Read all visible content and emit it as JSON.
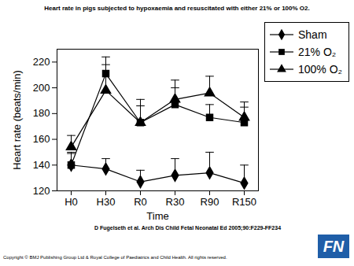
{
  "chart_data": {
    "type": "line",
    "title": "Heart rate in pigs subjected to hypoxaemia and resuscitated with either 21% or 100% O2.",
    "x_label": "Time",
    "y_label": "Heart rate (beats/min)",
    "categories": [
      "H0",
      "H30",
      "R0",
      "R30",
      "R90",
      "R150"
    ],
    "series": [
      {
        "name": "Sham",
        "color": "#000000",
        "marker": "diamond",
        "line_style": "solid",
        "values": [
          140,
          137,
          127,
          132,
          134,
          126
        ],
        "errors": [
          10,
          8,
          9,
          13,
          16,
          14
        ]
      },
      {
        "name": "21% O₂",
        "color": "#000000",
        "marker": "square",
        "line_style": "solid",
        "values": [
          140,
          211,
          173,
          187,
          177,
          173
        ],
        "errors": [
          9,
          13,
          13,
          13,
          10,
          12
        ]
      },
      {
        "name": "100% O₂",
        "color": "#000000",
        "marker": "triangle",
        "line_style": "solid",
        "values": [
          154,
          198,
          173,
          191,
          196,
          177
        ],
        "errors": [
          9,
          20,
          18,
          15,
          13,
          12
        ]
      }
    ],
    "ylim": [
      120,
      230
    ],
    "yticks": [
      120,
      140,
      160,
      180,
      200,
      220
    ],
    "grid": false,
    "legend": "top-right",
    "source": "D Fugelseth et al. Arch Dis Child Fetal Neonatal Ed 2005;90:F229-FF234",
    "copyright": "Copyright © BMJ Publishing Group Ltd & Royal College of Paediatrics and Child Health. All rights reserved.",
    "logo": "FN"
  }
}
